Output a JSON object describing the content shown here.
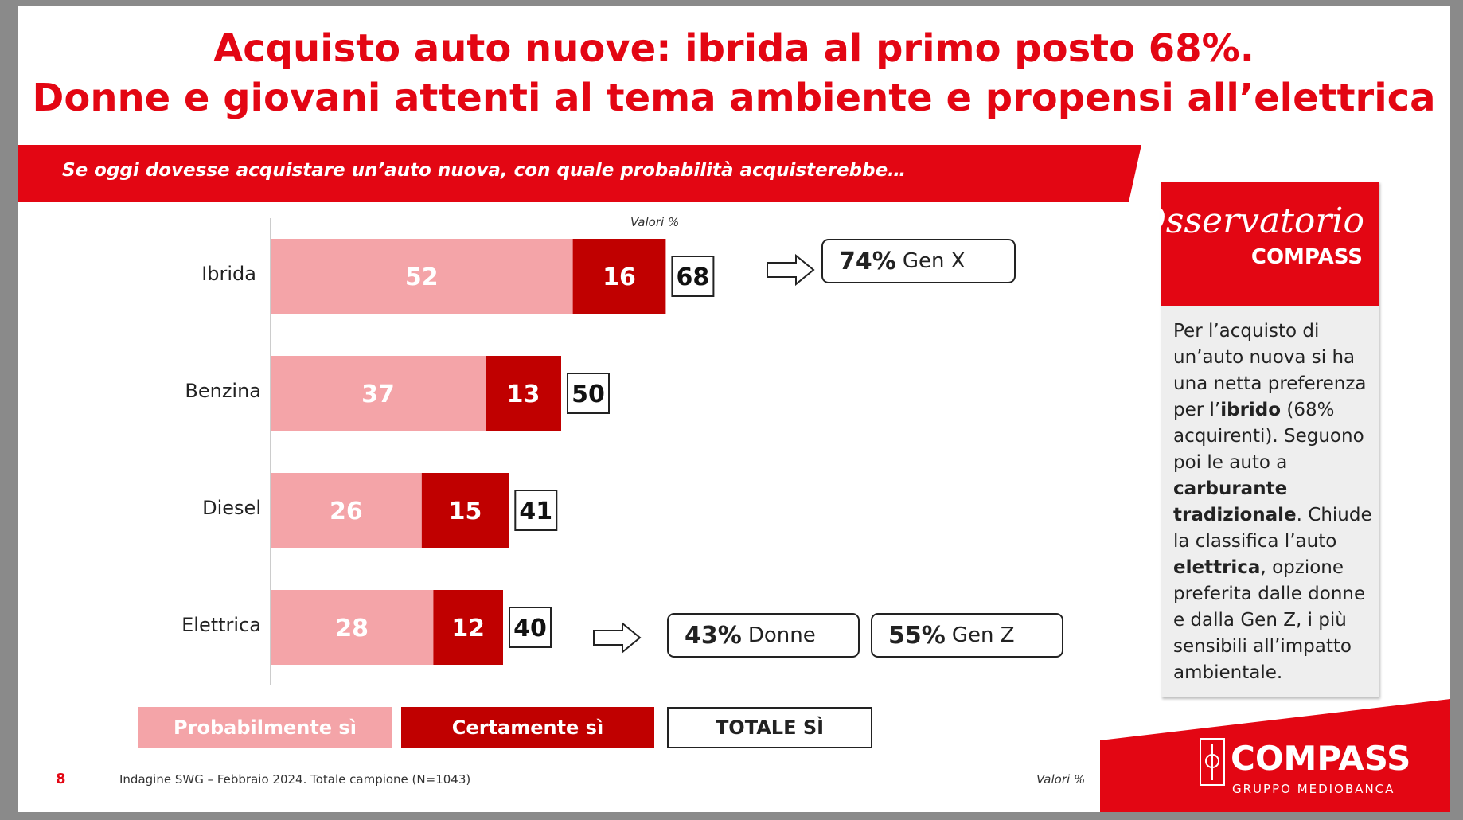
{
  "title": {
    "line1": "Acquisto auto nuove: ibrida al primo posto 68%.",
    "line2": "Donne e giovani attenti al tema ambiente e propensi all’elettrica"
  },
  "question": "Se oggi dovesse acquistare un’auto nuova, con quale probabilità acquisterebbe…",
  "unit_label": "Valori %",
  "chart_data": {
    "type": "bar",
    "orientation": "horizontal",
    "stacked": true,
    "categories": [
      "Ibrida",
      "Benzina",
      "Diesel",
      "Elettrica"
    ],
    "series": [
      {
        "name": "Probabilmente sì",
        "values": [
          52,
          37,
          26,
          28
        ],
        "color": "#f4a4a8"
      },
      {
        "name": "Certamente sì",
        "values": [
          16,
          13,
          15,
          12
        ],
        "color": "#c00000"
      }
    ],
    "totals_name": "TOTALE SÌ",
    "totals": [
      68,
      50,
      41,
      40
    ],
    "legend_position": "bottom",
    "grid": false
  },
  "notes": {
    "ibrida": [
      {
        "value": "74%",
        "label": "Gen X"
      }
    ],
    "elettrica": [
      {
        "value": "43%",
        "label": "Donne"
      },
      {
        "value": "55%",
        "label": "Gen Z"
      }
    ]
  },
  "legend": {
    "probabilmente": "Probabilmente sì",
    "certamente": "Certamente sì",
    "totale": "TOTALE SÌ"
  },
  "side_panel": {
    "logo_top": "Osservatorio",
    "logo_bottom": "COMPASS",
    "text_segments": [
      {
        "t": "Per l’acquisto di un’auto nuova si ha una netta preferenza per l’",
        "b": false
      },
      {
        "t": "ibrido",
        "b": true
      },
      {
        "t": " (68% acquirenti). Seguono poi le auto a ",
        "b": false
      },
      {
        "t": "carburante tradizionale",
        "b": true
      },
      {
        "t": ". Chiude la classifica l’auto ",
        "b": false
      },
      {
        "t": "elettrica",
        "b": true
      },
      {
        "t": ", opzione preferita dalle donne e dalla Gen Z, i più sensibili all’impatto ambientale.",
        "b": false
      }
    ]
  },
  "footer": {
    "page": "8",
    "source": "Indagine SWG – Febbraio 2024. Totale campione (N=1043)",
    "unit": "Valori %",
    "brand": "COMPASS",
    "brand_sub": "GRUPPO MEDIOBANCA"
  },
  "colors": {
    "brand_red": "#e30613",
    "light_pink": "#f4a4a8",
    "dark_red": "#c00000"
  }
}
